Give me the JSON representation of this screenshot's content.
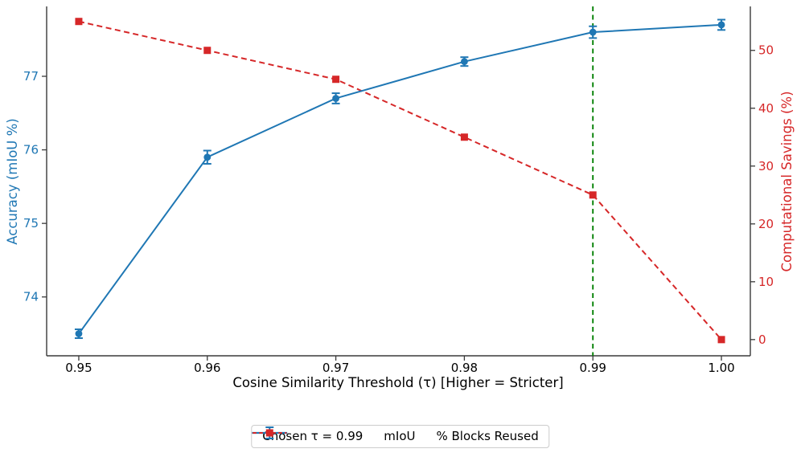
{
  "chart_data": {
    "type": "line",
    "title": "",
    "xlabel": "Cosine Similarity Threshold (τ) [Higher = Stricter]",
    "x": [
      0.95,
      0.96,
      0.97,
      0.98,
      0.99,
      1.0
    ],
    "x_tick_labels": [
      "0.95",
      "0.96",
      "0.97",
      "0.98",
      "0.99",
      "1.00"
    ],
    "xlim": [
      0.9475,
      1.00225
    ],
    "grid": false,
    "axes": {
      "left": {
        "label": "Accuracy (mIoU %)",
        "color": "#1f77b4",
        "ticks": [
          74,
          75,
          76,
          77
        ],
        "ylim": [
          73.2,
          77.95
        ]
      },
      "right": {
        "label": "Computational Savings (%)",
        "color": "#d62728",
        "ticks": [
          0,
          10,
          20,
          30,
          40,
          50
        ],
        "ylim": [
          -2.8,
          57.6
        ]
      }
    },
    "series": [
      {
        "name": "% Blocks Reused",
        "axis": "right",
        "color": "#d62728",
        "line_style": "dashed",
        "marker": "square",
        "values": [
          55,
          50,
          45,
          35,
          25,
          0
        ]
      },
      {
        "name": "mIoU",
        "axis": "left",
        "color": "#1f77b4",
        "line_style": "solid",
        "marker": "circle",
        "values": [
          73.5,
          75.9,
          76.7,
          77.2,
          77.6,
          77.7
        ],
        "yerr": [
          0.06,
          0.09,
          0.07,
          0.06,
          0.08,
          0.07
        ]
      }
    ],
    "vline": {
      "x": 0.99,
      "color": "#008000",
      "line_style": "dashed",
      "label": "Chosen τ = 0.99"
    },
    "legend": {
      "position": "bottom-center",
      "entries": [
        {
          "label": "Chosen τ = 0.99",
          "swatch": "dashed-line",
          "color": "#008000"
        },
        {
          "label": "mIoU",
          "swatch": "errorbar-line",
          "color": "#1f77b4"
        },
        {
          "label": "% Blocks Reused",
          "swatch": "dashed-square-line",
          "color": "#d62728"
        }
      ]
    },
    "spine_color": "#3a3a3a",
    "tick_label_color_x": "#000000"
  }
}
